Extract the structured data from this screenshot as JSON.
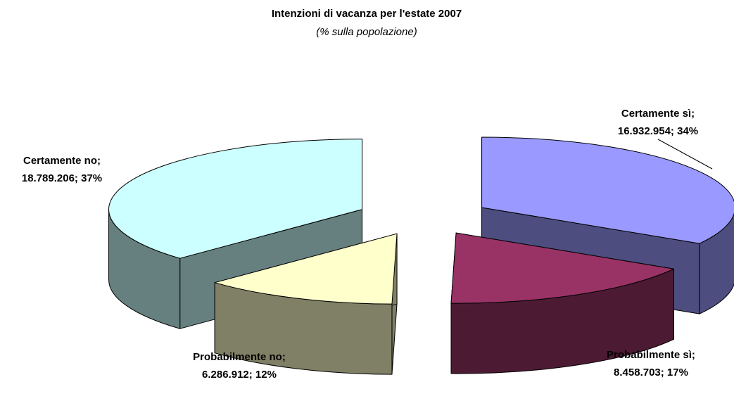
{
  "chart_data": {
    "type": "pie3d",
    "title": "Intenzioni di vacanza per l'estate 2007",
    "subtitle": "(% sulla popolazione)",
    "categories": [
      "Certamente sì;",
      "Probabilmente sì;",
      "Probabilmente no;",
      "Certamente no;"
    ],
    "values": [
      16932954,
      8458703,
      6286912,
      18789206
    ],
    "value_labels": [
      "16.932.954; 34%",
      "8.458.703; 17%",
      "6.286.912; 12%",
      "18.789.206; 37%"
    ],
    "colors": [
      "#9999ff",
      "#993366",
      "#ffffcc",
      "#ccffff"
    ],
    "side_colors": [
      "#4d4d80",
      "#4d1a33",
      "#808066",
      "#668080"
    ]
  }
}
